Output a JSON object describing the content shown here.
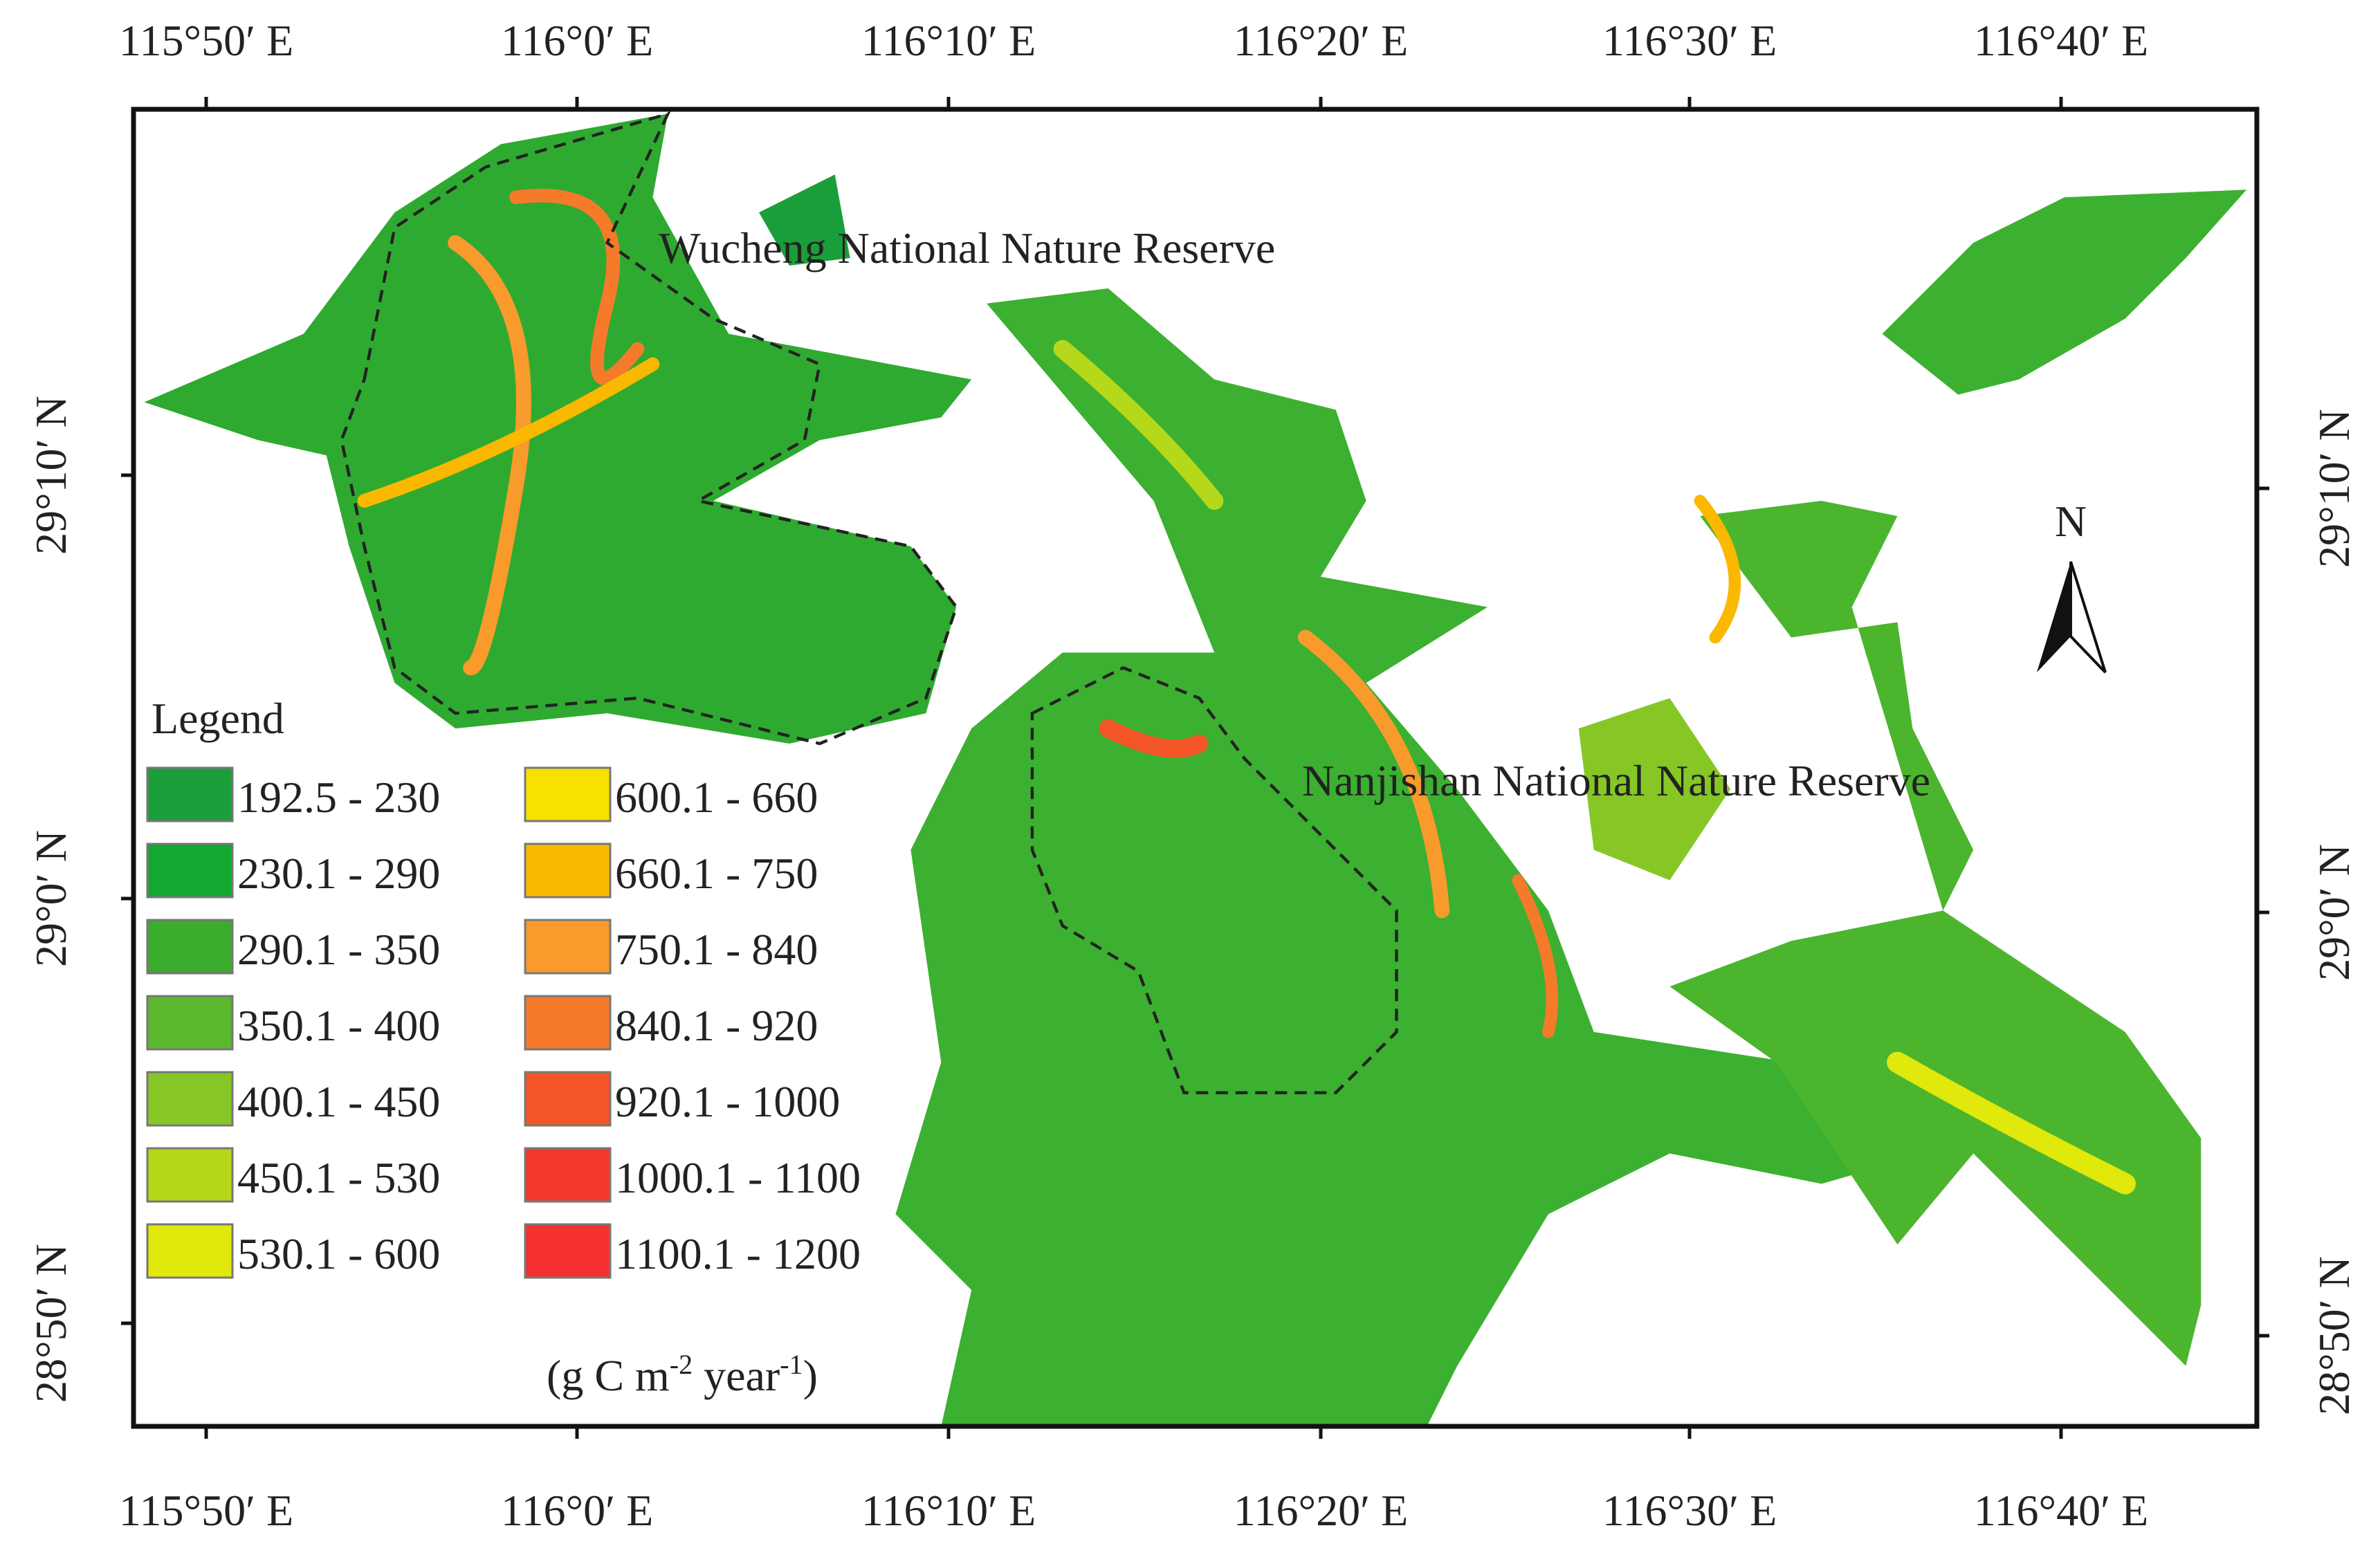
{
  "map": {
    "top_labels": [
      "115°50′ E",
      "116°0′ E",
      "116°10′ E",
      "116°20′ E",
      "116°30′ E",
      "116°40′ E"
    ],
    "bottom_labels": [
      "115°50′ E",
      "116°0′ E",
      "116°10′ E",
      "116°20′ E",
      "116°30′ E",
      "116°40′ E"
    ],
    "left_labels": [
      "29°10′ N",
      "29°0′ N",
      "28°50′ N"
    ],
    "right_labels": [
      "29°10′ N",
      "29°0′ N",
      "28°50′ N"
    ],
    "annotations": [
      "Wucheng National Nature Reserve",
      "Nanjishan National Nature Reserve"
    ],
    "north": "N",
    "legend": {
      "title": "Legend",
      "items": [
        {
          "label": "192.5 - 230",
          "color": "#1a9e3a"
        },
        {
          "label": "230.1 - 290",
          "color": "#12a832"
        },
        {
          "label": "290.1 - 350",
          "color": "#3aad2e"
        },
        {
          "label": "350.1 - 400",
          "color": "#5cb82e"
        },
        {
          "label": "400.1 - 450",
          "color": "#86c726"
        },
        {
          "label": "450.1 - 530",
          "color": "#b5d81a"
        },
        {
          "label": "530.1 - 600",
          "color": "#e0e80c"
        },
        {
          "label": "600.1 - 660",
          "color": "#f8e000"
        },
        {
          "label": "660.1 - 750",
          "color": "#fbb800"
        },
        {
          "label": "750.1 - 840",
          "color": "#f99a2c"
        },
        {
          "label": "840.1 - 920",
          "color": "#f57a2a"
        },
        {
          "label": "920.1 - 1000",
          "color": "#f45526"
        },
        {
          "label": "1000.1 - 1100",
          "color": "#f33a2a"
        },
        {
          "label": "1100.1 - 1200",
          "color": "#f43030"
        }
      ],
      "unit": [
        "(g C m",
        "-2",
        " year",
        "-1",
        ")"
      ]
    }
  }
}
